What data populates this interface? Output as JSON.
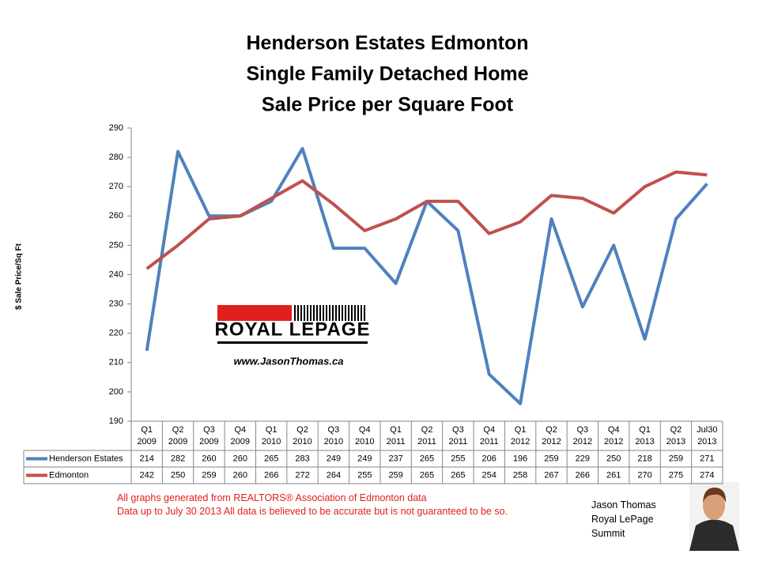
{
  "chart_data": {
    "type": "line",
    "title": [
      "Henderson Estates Edmonton",
      "Single Family Detached Home",
      "Sale Price per Square Foot"
    ],
    "y_label": "$ Sale Price/Sq Ft",
    "categories": [
      [
        "Q1",
        "2009"
      ],
      [
        "Q2",
        "2009"
      ],
      [
        "Q3",
        "2009"
      ],
      [
        "Q4",
        "2009"
      ],
      [
        "Q1",
        "2010"
      ],
      [
        "Q2",
        "2010"
      ],
      [
        "Q3",
        "2010"
      ],
      [
        "Q4",
        "2010"
      ],
      [
        "Q1",
        "2011"
      ],
      [
        "Q2",
        "2011"
      ],
      [
        "Q3",
        "2011"
      ],
      [
        "Q4",
        "2011"
      ],
      [
        "Q1",
        "2012"
      ],
      [
        "Q2",
        "2012"
      ],
      [
        "Q3",
        "2012"
      ],
      [
        "Q4",
        "2012"
      ],
      [
        "Q1",
        "2013"
      ],
      [
        "Q2",
        "2013"
      ],
      [
        "Jul30",
        "2013"
      ]
    ],
    "series": [
      {
        "name": "Henderson Estates",
        "color": "#4f81bd",
        "values": [
          214,
          282,
          260,
          260,
          265,
          283,
          249,
          249,
          237,
          265,
          255,
          206,
          196,
          259,
          229,
          250,
          218,
          259,
          271
        ]
      },
      {
        "name": "Edmonton",
        "color": "#c0504d",
        "values": [
          242,
          250,
          259,
          260,
          266,
          272,
          264,
          255,
          259,
          265,
          265,
          254,
          258,
          267,
          266,
          261,
          270,
          275,
          274
        ]
      }
    ],
    "ylim": [
      190,
      290
    ],
    "yticks": [
      190,
      200,
      210,
      220,
      230,
      240,
      250,
      260,
      270,
      280,
      290
    ],
    "grid": false
  },
  "logo": {
    "brand": "ROYAL LEPAGE",
    "url": "www.JasonThomas.ca"
  },
  "footer": {
    "notes": [
      "All graphs generated from REALTORS® Association of Edmonton data",
      "Data up to  July 30 2013  All data is believed to be accurate but is not guaranteed to be so."
    ],
    "signature": [
      "Jason Thomas",
      "Royal LePage",
      "Summit"
    ]
  }
}
